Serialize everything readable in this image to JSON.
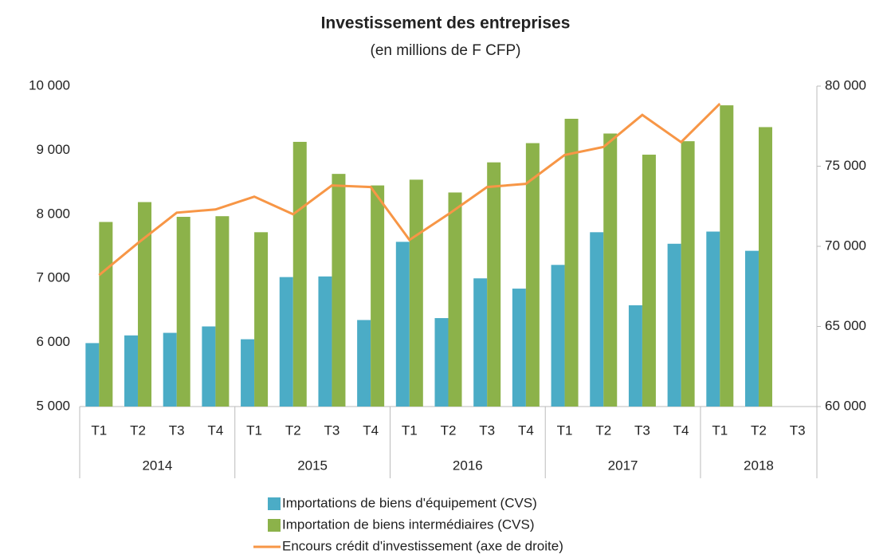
{
  "chart_data": {
    "type": "bar_line",
    "title": "Investissement des entreprises",
    "subtitle": "(en millions de F CFP)",
    "groups": [
      {
        "name": "2014",
        "categories": [
          "T1",
          "T2",
          "T3",
          "T4"
        ]
      },
      {
        "name": "2015",
        "categories": [
          "T1",
          "T2",
          "T3",
          "T4"
        ]
      },
      {
        "name": "2016",
        "categories": [
          "T1",
          "T2",
          "T3",
          "T4"
        ]
      },
      {
        "name": "2017",
        "categories": [
          "T1",
          "T2",
          "T3",
          "T4"
        ]
      },
      {
        "name": "2018",
        "categories": [
          "T1",
          "T2",
          "T3"
        ]
      }
    ],
    "series": [
      {
        "name": "Importations de biens d'équipement (CVS)",
        "color": "#4bacc6",
        "kind": "bar",
        "values": [
          5990,
          6110,
          6150,
          6250,
          6050,
          7020,
          7030,
          6350,
          7570,
          6380,
          7000,
          6840,
          7210,
          7720,
          6580,
          7540,
          7730,
          7430,
          null
        ]
      },
      {
        "name": "Importation de biens intermédiaires (CVS)",
        "color": "#8cb24a",
        "kind": "bar",
        "values": [
          7880,
          8190,
          7960,
          7970,
          7720,
          9130,
          8630,
          8450,
          8540,
          8340,
          8810,
          9110,
          9490,
          9260,
          8930,
          9140,
          9700,
          9360,
          null
        ]
      },
      {
        "name": "Encours crédit d'investissement (axe de droite)",
        "color": "#f79646",
        "kind": "line",
        "axis": "y2",
        "values": [
          68200,
          70200,
          72100,
          72300,
          73100,
          72000,
          73800,
          73700,
          70400,
          72000,
          73700,
          73900,
          75700,
          76200,
          78200,
          76500,
          78900,
          null,
          null
        ]
      }
    ],
    "ylim": [
      5000,
      10000
    ],
    "yticks": [
      {
        "value": 5000,
        "label": "5 000"
      },
      {
        "value": 6000,
        "label": "6 000"
      },
      {
        "value": 7000,
        "label": "7 000"
      },
      {
        "value": 8000,
        "label": "8 000"
      },
      {
        "value": 9000,
        "label": "9 000"
      },
      {
        "value": 10000,
        "label": "10 000"
      }
    ],
    "y2lim": [
      60000,
      80000
    ],
    "y2ticks": [
      {
        "value": 60000,
        "label": "60 000"
      },
      {
        "value": 65000,
        "label": "65 000"
      },
      {
        "value": 70000,
        "label": "70 000"
      },
      {
        "value": 75000,
        "label": "75 000"
      },
      {
        "value": 80000,
        "label": "80 000"
      }
    ],
    "grid": false,
    "legend": "bottom"
  }
}
